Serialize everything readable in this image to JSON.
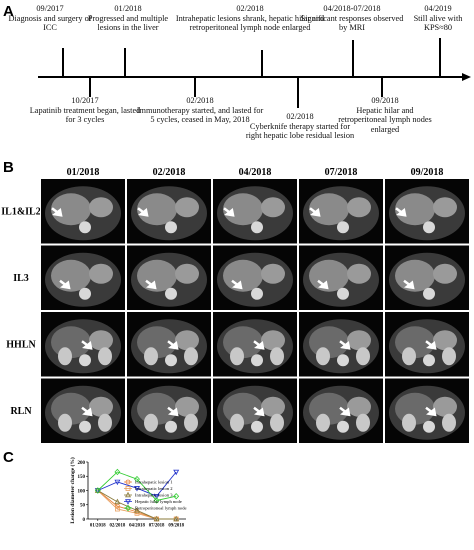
{
  "panels": {
    "a": "A",
    "b": "B",
    "c": "C"
  },
  "timeline": {
    "above": [
      {
        "date": "09/2017",
        "text": "Diagnosis and surgery of ICC"
      },
      {
        "date": "01/2018",
        "text": "Progressed and multiple lesions in the liver"
      },
      {
        "date": "02/2018",
        "text": "Intrahepatic lesions shrank, hepatic hilar and retroperitoneal lymph node enlarged"
      },
      {
        "date": "04/2018-07/2018",
        "text": "Significant responses observed by MRI"
      },
      {
        "date": "04/2019",
        "text": "Still alive with KPS≈80"
      }
    ],
    "below": [
      {
        "date": "10/2017",
        "text": "Lapatinib treatment began, lasted for 3 cycles"
      },
      {
        "date": "02/2018",
        "text": "Immunotherapy started, and lasted for 5 cycles, ceased in May, 2018"
      },
      {
        "date": "02/2018",
        "text": "Cyberknife therapy started for right hepatic lobe residual lesion"
      },
      {
        "date": "09/2018",
        "text": "Hepatic hilar and retroperitoneal lymph nodes enlarged"
      }
    ]
  },
  "mri": {
    "columns": [
      "01/2018",
      "02/2018",
      "04/2018",
      "07/2018",
      "09/2018"
    ],
    "rows": [
      "IL1&IL2",
      "IL3",
      "HHLN",
      "RLN"
    ]
  },
  "chart_data": {
    "type": "line",
    "y_label": "Lesion diameter change (%)",
    "categories": [
      "01/2018",
      "02/2018",
      "04/2018",
      "07/2018",
      "09/2018"
    ],
    "series": [
      {
        "name": "Intrahepatic lesion 1",
        "color": "#e8823a",
        "marker": "circle",
        "values": [
          100,
          45,
          25,
          0,
          0
        ]
      },
      {
        "name": "Intrahepatic lesion 2",
        "color": "#e8a060",
        "marker": "square",
        "values": [
          100,
          35,
          20,
          0,
          0
        ]
      },
      {
        "name": "Intrahepatic lesion 3",
        "color": "#8a7a3a",
        "marker": "triangle",
        "values": [
          100,
          60,
          30,
          0,
          0
        ]
      },
      {
        "name": "Hepatic hilar lymph node",
        "color": "#2233cc",
        "marker": "triangle-down",
        "values": [
          100,
          130,
          108,
          80,
          165
        ]
      },
      {
        "name": "Retroperitoneal lymph node",
        "color": "#33cc33",
        "marker": "diamond",
        "values": [
          100,
          165,
          140,
          65,
          80
        ]
      }
    ],
    "ylim": [
      0,
      200
    ],
    "yticks": [
      0,
      50,
      100,
      150,
      200
    ],
    "legend": "right"
  }
}
